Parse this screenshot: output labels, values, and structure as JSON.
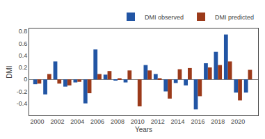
{
  "chart_data": {
    "type": "bar",
    "x": [
      2000,
      2001,
      2002,
      2003,
      2004,
      2005,
      2006,
      2007,
      2008,
      2009,
      2010,
      2011,
      2012,
      2013,
      2014,
      2015,
      2016,
      2017,
      2018,
      2019,
      2020,
      2021
    ],
    "series": [
      {
        "name": "DMI observed",
        "color": "#2255a4",
        "values": [
          -0.08,
          -0.25,
          0.3,
          -0.12,
          -0.05,
          -0.4,
          0.5,
          0.08,
          -0.02,
          -0.05,
          0.0,
          0.24,
          0.09,
          -0.2,
          -0.06,
          -0.1,
          -0.5,
          0.27,
          0.46,
          0.75,
          -0.22,
          -0.22
        ]
      },
      {
        "name": "DMI predicted",
        "color": "#9b3a1a",
        "values": [
          -0.07,
          0.09,
          -0.07,
          -0.1,
          -0.04,
          -0.23,
          0.09,
          0.14,
          0.02,
          0.15,
          -0.45,
          0.15,
          0.02,
          -0.32,
          0.17,
          0.19,
          -0.28,
          0.2,
          0.24,
          0.3,
          -0.35,
          0.16
        ]
      }
    ],
    "xlabel": "Years",
    "ylabel": "DMI",
    "xlim": [
      1999.2,
      2022.0
    ],
    "xticks": [
      2000,
      2002,
      2004,
      2006,
      2008,
      2010,
      2012,
      2014,
      2016,
      2018,
      2020
    ],
    "ylim": [
      -0.6,
      0.85
    ],
    "yticks": [
      -0.4,
      -0.2,
      0.0,
      0.2,
      0.4,
      0.6,
      0.8
    ],
    "grid": false,
    "legend": "upper right"
  }
}
